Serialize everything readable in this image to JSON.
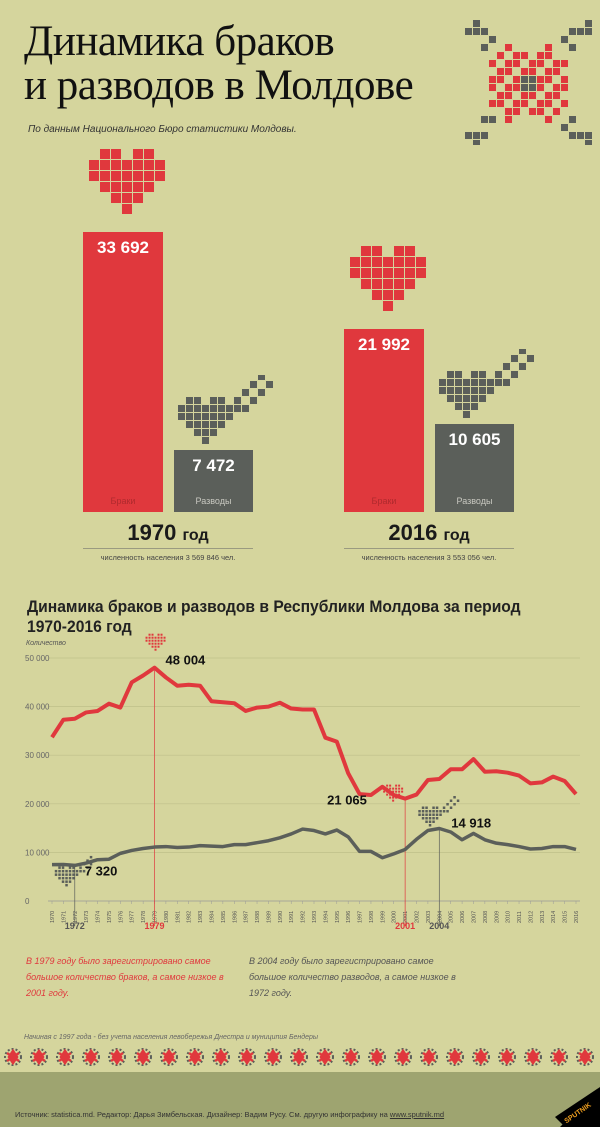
{
  "header": {
    "title_line1": "Динамика браков",
    "title_line2": "и разводов в Молдове",
    "subtitle": "По данным Национального Бюро статистики Молдовы."
  },
  "colors": {
    "background": "#d5d59d",
    "marriages": "#e0383d",
    "divorces": "#5b5f5a",
    "footer": "#9ea470"
  },
  "comparison": [
    {
      "year": "1970",
      "year_suffix": "год",
      "population": "численность населения 3 569 846 чел.",
      "marriages": 33692,
      "marriages_label": "33 692",
      "divorces": 7472,
      "divorces_label": "7 472",
      "marriages_caption": "Браки",
      "divorces_caption": "Разводы"
    },
    {
      "year": "2016",
      "year_suffix": "год",
      "population": "численность населения 3 553 056 чел.",
      "marriages": 21992,
      "marriages_label": "21 992",
      "divorces": 10605,
      "divorces_label": "10 605",
      "marriages_caption": "Браки",
      "divorces_caption": "Разводы"
    }
  ],
  "chart_data": {
    "type": "line",
    "title": "Динамика браков и разводов в Республики Молдова за период 1970-2016 год",
    "ylabel": "Количество",
    "xlabel": "",
    "ylim": [
      0,
      50000
    ],
    "yticks": [
      0,
      10000,
      20000,
      30000,
      40000,
      50000
    ],
    "ytick_labels": [
      "0",
      "10 000",
      "20 000",
      "30 000",
      "40 000",
      "50 000"
    ],
    "grid": true,
    "x": [
      1970,
      1971,
      1972,
      1973,
      1974,
      1975,
      1976,
      1977,
      1978,
      1979,
      1980,
      1981,
      1982,
      1983,
      1984,
      1985,
      1986,
      1987,
      1988,
      1989,
      1990,
      1991,
      1992,
      1993,
      1994,
      1995,
      1996,
      1997,
      1998,
      1999,
      2000,
      2001,
      2002,
      2003,
      2004,
      2005,
      2006,
      2007,
      2008,
      2009,
      2010,
      2011,
      2012,
      2013,
      2014,
      2015,
      2016
    ],
    "series": [
      {
        "name": "Браки",
        "color": "#e0383d",
        "values": [
          33692,
          37300,
          37500,
          38800,
          39100,
          40600,
          39800,
          45000,
          46400,
          48004,
          46000,
          44300,
          44500,
          44300,
          41100,
          40900,
          40700,
          39100,
          39800,
          40000,
          40800,
          39600,
          39400,
          39400,
          33600,
          32800,
          26300,
          22000,
          21800,
          23500,
          21800,
          21065,
          21900,
          24900,
          25100,
          27100,
          27100,
          29200,
          26600,
          26700,
          26400,
          25800,
          24200,
          24400,
          25600,
          24700,
          21992
        ]
      },
      {
        "name": "Разводы",
        "color": "#5b5f5a",
        "values": [
          7472,
          7500,
          7320,
          7800,
          8500,
          8600,
          9800,
          10400,
          10800,
          11100,
          11200,
          11000,
          11100,
          11400,
          11300,
          11200,
          11600,
          11600,
          12000,
          12400,
          13000,
          13800,
          14800,
          14500,
          13800,
          14600,
          13200,
          10200,
          10200,
          8900,
          9700,
          10600,
          12700,
          14500,
          14918,
          14200,
          12600,
          13900,
          12600,
          11900,
          11600,
          11200,
          10700,
          10800,
          11200,
          11200,
          10605
        ]
      }
    ],
    "annotations": [
      {
        "year": 1979,
        "series": 0,
        "label": "48 004",
        "year_label": "1979"
      },
      {
        "year": 2001,
        "series": 0,
        "label": "21 065",
        "year_label": "2001"
      },
      {
        "year": 1972,
        "series": 1,
        "label": "7 320",
        "year_label": "1972"
      },
      {
        "year": 2004,
        "series": 1,
        "label": "14 918",
        "year_label": "2004"
      }
    ]
  },
  "notes": {
    "marriages": "В 1979 году было зарегистрировано самое большое количество браков, а самое низкое в 2001 году.",
    "divorces": "В 2004 году было зарегистрировано самое большое количество разводов, а самое низкое в 1972 году.",
    "footnote": "Начиная с 1997 года - без учета населения левобережья Днестра и муниципия Бендеры"
  },
  "footer": {
    "source": "Источник: statistica.md. Редактор: Дарья Зимбельская. Дизайнер: Вадим Русу.   См. другую инфографику на ",
    "link": "www.sputnik.md",
    "logo": "SPUTNIK"
  }
}
